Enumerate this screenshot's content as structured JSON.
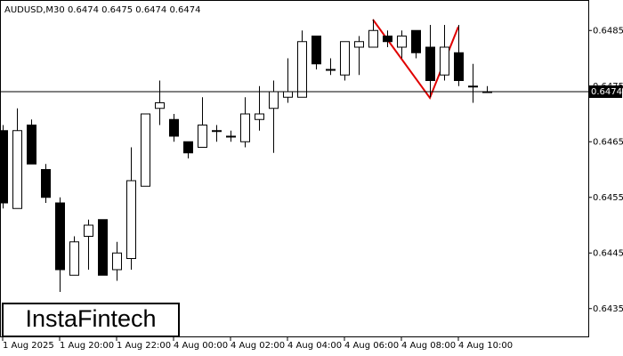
{
  "chart_data": {
    "type": "candlestick",
    "title": "AUDUSD,M30  0.6474 0.6475 0.6474 0.6474",
    "watermark": "InstaFintech",
    "categories": [
      "1 Aug 2025",
      null,
      null,
      null,
      "1 Aug 20:00",
      null,
      null,
      null,
      "1 Aug 22:00",
      null,
      null,
      null,
      "4 Aug 00:00",
      null,
      null,
      null,
      "4 Aug 02:00",
      null,
      null,
      null,
      "4 Aug 04:00",
      null,
      null,
      null,
      "4 Aug 06:00",
      null,
      null,
      null,
      "4 Aug 08:00",
      null,
      null,
      null,
      "4 Aug 10:00",
      null,
      null
    ],
    "open": [
      0.6467,
      0.6453,
      0.6468,
      0.646,
      0.6454,
      0.6441,
      0.6448,
      0.6451,
      0.6442,
      0.6444,
      0.6457,
      0.6471,
      0.6469,
      0.6465,
      0.6464,
      0.6467,
      0.6466,
      0.6465,
      0.6469,
      0.6471,
      0.6473,
      0.6473,
      0.6484,
      0.6478,
      0.6477,
      0.6482,
      0.6482,
      0.6484,
      0.6482,
      0.6485,
      0.6482,
      0.6477,
      0.6481,
      0.6475,
      0.6474
    ],
    "high": [
      0.6468,
      0.6471,
      0.6469,
      0.6461,
      0.6455,
      0.6448,
      0.6451,
      0.6451,
      0.6447,
      0.6464,
      0.647,
      0.6476,
      0.647,
      0.6465,
      0.6473,
      0.6468,
      0.6467,
      0.6473,
      0.6475,
      0.6476,
      0.648,
      0.6485,
      0.6484,
      0.648,
      0.6483,
      0.6484,
      0.6487,
      0.6485,
      0.6485,
      0.6485,
      0.6486,
      0.6486,
      0.6486,
      0.6479,
      0.6475
    ],
    "low": [
      0.6453,
      0.6453,
      0.6461,
      0.6454,
      0.6438,
      0.6441,
      0.6442,
      0.6441,
      0.644,
      0.6442,
      0.6457,
      0.6468,
      0.6465,
      0.6462,
      0.6464,
      0.6465,
      0.6465,
      0.6464,
      0.6467,
      0.6463,
      0.6472,
      0.6473,
      0.6478,
      0.6477,
      0.6476,
      0.6477,
      0.6482,
      0.6482,
      0.648,
      0.648,
      0.6473,
      0.6476,
      0.6475,
      0.6472,
      0.6474
    ],
    "close": [
      0.6454,
      0.6467,
      0.6461,
      0.6455,
      0.6442,
      0.6447,
      0.645,
      0.6441,
      0.6445,
      0.6458,
      0.647,
      0.6472,
      0.6466,
      0.6463,
      0.6468,
      0.6467,
      0.6466,
      0.647,
      0.647,
      0.6474,
      0.6474,
      0.6483,
      0.6479,
      0.6478,
      0.6483,
      0.6483,
      0.6485,
      0.6483,
      0.6484,
      0.6481,
      0.6476,
      0.6482,
      0.6476,
      0.6475,
      0.6474
    ],
    "up_color": "#ffffff",
    "down_color": "#000000",
    "current_price": 0.6474,
    "ylim": [
      0.643,
      0.649
    ],
    "yticks": [
      0.6435,
      0.6445,
      0.6455,
      0.6465,
      0.6475,
      0.6485
    ]
  }
}
